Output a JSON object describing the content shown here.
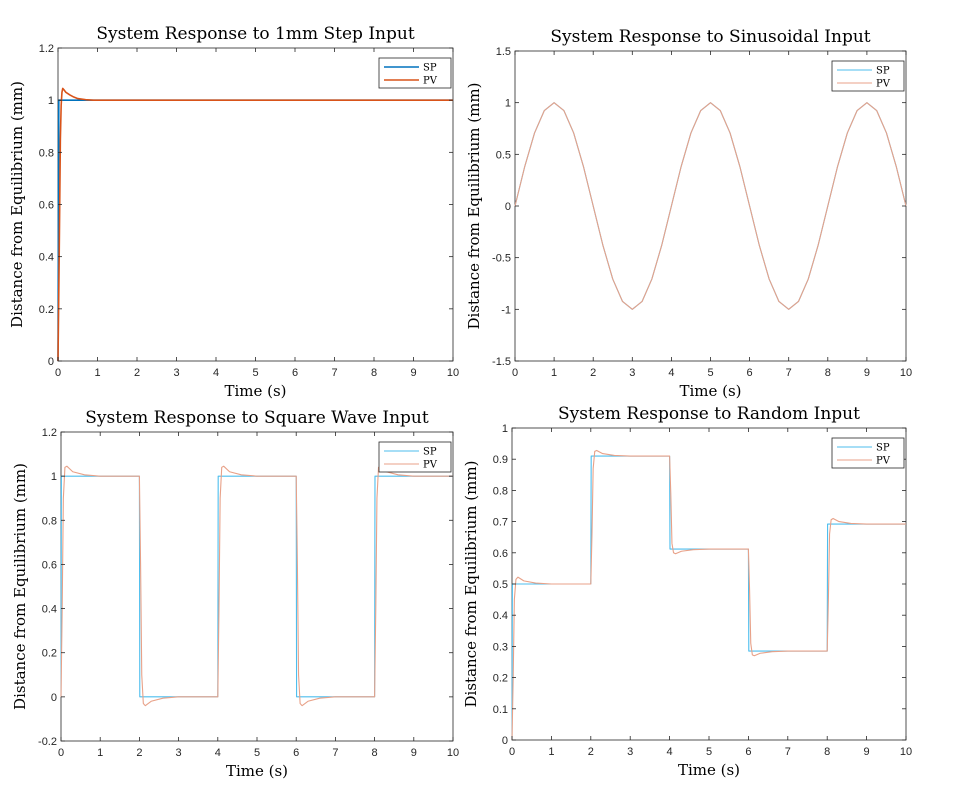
{
  "chart_data": [
    {
      "type": "line",
      "title": "System Response to 1mm Step Input",
      "xlabel": "Time (s)",
      "ylabel": "Distance from Equilibrium (mm)",
      "xlim": [
        0,
        10
      ],
      "ylim": [
        0,
        1.2
      ],
      "xticks": [
        0,
        1,
        2,
        3,
        4,
        5,
        6,
        7,
        8,
        9,
        10
      ],
      "yticks": [
        0,
        0.2,
        0.4,
        0.6,
        0.8,
        1,
        1.2
      ],
      "xtick_labels": [
        "0",
        "1",
        "2",
        "3",
        "4",
        "5",
        "6",
        "7",
        "8",
        "9",
        "10"
      ],
      "ytick_labels": [
        "0",
        "0.2",
        "0.4",
        "0.6",
        "0.8",
        "1",
        "1.2"
      ],
      "legend_position": "top-right",
      "series": [
        {
          "name": "SP",
          "color": "#0072BD",
          "x": [
            0,
            0.02,
            10
          ],
          "y": [
            0,
            1,
            1
          ]
        },
        {
          "name": "PV",
          "color": "#D95319",
          "x": [
            0,
            0.03,
            0.06,
            0.08,
            0.1,
            0.12,
            0.15,
            0.2,
            0.3,
            0.4,
            0.5,
            0.7,
            0.9,
            1.0,
            10
          ],
          "y": [
            0,
            0.4,
            0.85,
            0.98,
            1.03,
            1.045,
            1.04,
            1.03,
            1.02,
            1.012,
            1.006,
            1.002,
            1.0,
            1.0,
            1.0
          ]
        }
      ]
    },
    {
      "type": "line",
      "title": "System Response to Sinusoidal Input",
      "xlabel": "Time (s)",
      "ylabel": "Distance from Equilibrium (mm)",
      "xlim": [
        0,
        10
      ],
      "ylim": [
        -1.5,
        1.5
      ],
      "xticks": [
        0,
        1,
        2,
        3,
        4,
        5,
        6,
        7,
        8,
        9,
        10
      ],
      "yticks": [
        -1.5,
        -1,
        -0.5,
        0,
        0.5,
        1,
        1.5
      ],
      "xtick_labels": [
        "0",
        "1",
        "2",
        "3",
        "4",
        "5",
        "6",
        "7",
        "8",
        "9",
        "10"
      ],
      "ytick_labels": [
        "-1.5",
        "-1",
        "-0.5",
        "0",
        "0.5",
        "1",
        "1.5"
      ],
      "legend_position": "top-right",
      "series": [
        {
          "name": "SP",
          "color": "#4DBEEE",
          "x": [
            0,
            0.25,
            0.5,
            0.75,
            1,
            1.25,
            1.5,
            1.75,
            2,
            2.25,
            2.5,
            2.75,
            3,
            3.25,
            3.5,
            3.75,
            4,
            4.25,
            4.5,
            4.75,
            5,
            5.25,
            5.5,
            5.75,
            6,
            6.25,
            6.5,
            6.75,
            7,
            7.25,
            7.5,
            7.75,
            8,
            8.25,
            8.5,
            8.75,
            9,
            9.25,
            9.5,
            9.75,
            10
          ],
          "y": [
            0,
            0.383,
            0.707,
            0.924,
            1,
            0.924,
            0.707,
            0.383,
            0,
            -0.383,
            -0.707,
            -0.924,
            -1,
            -0.924,
            -0.707,
            -0.383,
            0,
            0.383,
            0.707,
            0.924,
            1,
            0.924,
            0.707,
            0.383,
            0,
            -0.383,
            -0.707,
            -0.924,
            -1,
            -0.924,
            -0.707,
            -0.383,
            0,
            0.383,
            0.707,
            0.924,
            1,
            0.924,
            0.707,
            0.383,
            0
          ]
        },
        {
          "name": "PV",
          "color": "#E8A188",
          "x": [
            0,
            0.25,
            0.5,
            0.75,
            1,
            1.25,
            1.5,
            1.75,
            2,
            2.25,
            2.5,
            2.75,
            3,
            3.25,
            3.5,
            3.75,
            4,
            4.25,
            4.5,
            4.75,
            5,
            5.25,
            5.5,
            5.75,
            6,
            6.25,
            6.5,
            6.75,
            7,
            7.25,
            7.5,
            7.75,
            8,
            8.25,
            8.5,
            8.75,
            9,
            9.25,
            9.5,
            9.75,
            10
          ],
          "y": [
            0,
            0.383,
            0.707,
            0.924,
            1,
            0.924,
            0.707,
            0.383,
            0,
            -0.383,
            -0.707,
            -0.924,
            -1,
            -0.924,
            -0.707,
            -0.383,
            0,
            0.383,
            0.707,
            0.924,
            1,
            0.924,
            0.707,
            0.383,
            0,
            -0.383,
            -0.707,
            -0.924,
            -1,
            -0.924,
            -0.707,
            -0.383,
            0,
            0.383,
            0.707,
            0.924,
            1,
            0.924,
            0.707,
            0.383,
            0
          ]
        }
      ]
    },
    {
      "type": "line",
      "title": "System Response to Square Wave Input",
      "xlabel": "Time (s)",
      "ylabel": "Distance from Equilibrium (mm)",
      "xlim": [
        0,
        10
      ],
      "ylim": [
        -0.2,
        1.2
      ],
      "xticks": [
        0,
        1,
        2,
        3,
        4,
        5,
        6,
        7,
        8,
        9,
        10
      ],
      "yticks": [
        -0.2,
        0,
        0.2,
        0.4,
        0.6,
        0.8,
        1,
        1.2
      ],
      "xtick_labels": [
        "0",
        "1",
        "2",
        "3",
        "4",
        "5",
        "6",
        "7",
        "8",
        "9",
        "10"
      ],
      "ytick_labels": [
        "-0.2",
        "0",
        "0.2",
        "0.4",
        "0.6",
        "0.8",
        "1",
        "1.2"
      ],
      "legend_position": "top-right",
      "series": [
        {
          "name": "SP",
          "color": "#4DBEEE",
          "x": [
            0,
            0.01,
            2,
            2.01,
            4,
            4.01,
            6,
            6.01,
            8,
            8.01,
            10
          ],
          "y": [
            0,
            1,
            1,
            0,
            0,
            1,
            1,
            0,
            0,
            1,
            1
          ]
        },
        {
          "name": "PV",
          "color": "#E8A188",
          "x": [
            0,
            0.03,
            0.06,
            0.1,
            0.15,
            0.3,
            0.6,
            1.0,
            2.0,
            2.03,
            2.06,
            2.1,
            2.15,
            2.3,
            2.6,
            3.0,
            4.0,
            4.03,
            4.06,
            4.1,
            4.15,
            4.3,
            4.6,
            5.0,
            6.0,
            6.03,
            6.06,
            6.1,
            6.15,
            6.3,
            6.6,
            7.0,
            8.0,
            8.03,
            8.06,
            8.1,
            8.15,
            8.3,
            8.6,
            9.0,
            10
          ],
          "y": [
            0,
            0.4,
            0.9,
            1.04,
            1.045,
            1.02,
            1.006,
            1.0,
            1.0,
            0.6,
            0.1,
            -0.03,
            -0.04,
            -0.02,
            -0.006,
            0,
            0,
            0.4,
            0.9,
            1.04,
            1.045,
            1.02,
            1.006,
            1.0,
            1.0,
            0.6,
            0.1,
            -0.03,
            -0.04,
            -0.02,
            -0.006,
            0,
            0,
            0.4,
            0.9,
            1.04,
            1.045,
            1.02,
            1.006,
            1.0,
            1.0
          ]
        }
      ]
    },
    {
      "type": "line",
      "title": "System Response to Random Input",
      "xlabel": "Time (s)",
      "ylabel": "Distance from Equilibrium (mm)",
      "xlim": [
        0,
        10
      ],
      "ylim": [
        0,
        1
      ],
      "xticks": [
        0,
        1,
        2,
        3,
        4,
        5,
        6,
        7,
        8,
        9,
        10
      ],
      "yticks": [
        0,
        0.1,
        0.2,
        0.3,
        0.4,
        0.5,
        0.6,
        0.7,
        0.8,
        0.9,
        1
      ],
      "xtick_labels": [
        "0",
        "1",
        "2",
        "3",
        "4",
        "5",
        "6",
        "7",
        "8",
        "9",
        "10"
      ],
      "ytick_labels": [
        "0",
        "0.1",
        "0.2",
        "0.3",
        "0.4",
        "0.5",
        "0.6",
        "0.7",
        "0.8",
        "0.9",
        "1"
      ],
      "legend_position": "top-right",
      "series": [
        {
          "name": "SP",
          "color": "#4DBEEE",
          "x": [
            0,
            0.01,
            2,
            2.01,
            4,
            4.01,
            6,
            6.01,
            8,
            8.01,
            10
          ],
          "y": [
            0,
            0.5,
            0.5,
            0.91,
            0.91,
            0.612,
            0.612,
            0.285,
            0.285,
            0.692,
            0.692
          ]
        },
        {
          "name": "PV",
          "color": "#E8A188",
          "x": [
            0,
            0.03,
            0.06,
            0.1,
            0.15,
            0.3,
            0.6,
            1.0,
            2.0,
            2.03,
            2.06,
            2.1,
            2.15,
            2.3,
            2.6,
            3.0,
            4.0,
            4.03,
            4.06,
            4.1,
            4.15,
            4.3,
            4.6,
            5.0,
            6.0,
            6.03,
            6.06,
            6.1,
            6.15,
            6.3,
            6.6,
            7.0,
            8.0,
            8.03,
            8.06,
            8.1,
            8.15,
            8.3,
            8.6,
            9.0,
            10
          ],
          "y": [
            0,
            0.2,
            0.45,
            0.515,
            0.522,
            0.51,
            0.503,
            0.5,
            0.5,
            0.66,
            0.87,
            0.925,
            0.928,
            0.918,
            0.912,
            0.91,
            0.91,
            0.79,
            0.63,
            0.6,
            0.597,
            0.605,
            0.61,
            0.612,
            0.612,
            0.48,
            0.31,
            0.273,
            0.27,
            0.278,
            0.283,
            0.285,
            0.285,
            0.45,
            0.66,
            0.706,
            0.71,
            0.7,
            0.694,
            0.692,
            0.692
          ]
        }
      ]
    }
  ]
}
